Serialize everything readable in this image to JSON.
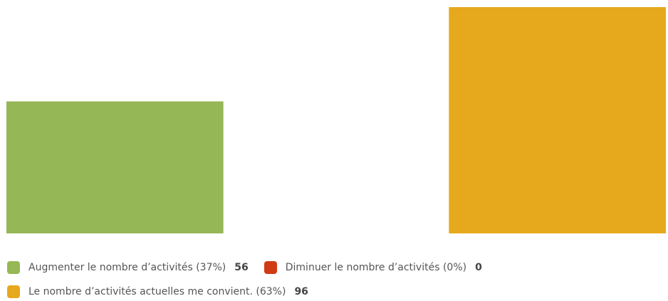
{
  "chart_data": {
    "type": "bar",
    "categories": [
      "Augmenter le nombre d’activités (37%)",
      "Diminuer le nombre d’activités (0%)",
      "Le nombre d’activités actuelles me convient. (63%)"
    ],
    "values": [
      56,
      0,
      96
    ],
    "colors": [
      "#96b755",
      "#d03b13",
      "#e6a81c"
    ],
    "ylim": [
      0,
      96
    ]
  }
}
